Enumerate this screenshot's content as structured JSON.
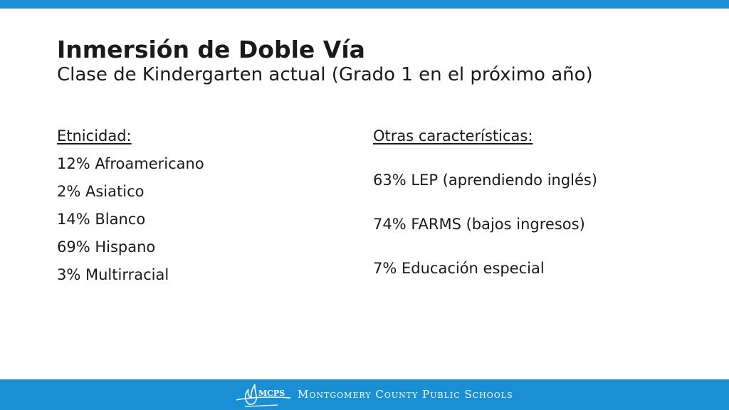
{
  "slide": {
    "title": "Inmersión de Doble Vía",
    "subtitle": "Clase de Kindergarten actual (Grado 1 en el próximo año)"
  },
  "ethnicity": {
    "heading": "Etnicidad:",
    "items": [
      "12% Afroamericano",
      "2% Asiatico",
      "14% Blanco",
      "69% Hispano",
      "3% Multirracial"
    ]
  },
  "other": {
    "heading": "Otras características:",
    "items": [
      "63% LEP (aprendiendo inglés)",
      "74% FARMS (bajos ingresos)",
      "7% Educación especial"
    ]
  },
  "footer": {
    "logo_text": "MCPS",
    "org_name": "Montgomery County Public Schools",
    "logo_icon": "flame-icon"
  },
  "colors": {
    "accent": "#1a8fd4",
    "text": "#1a1a1a",
    "footer_text": "#ffffff"
  }
}
